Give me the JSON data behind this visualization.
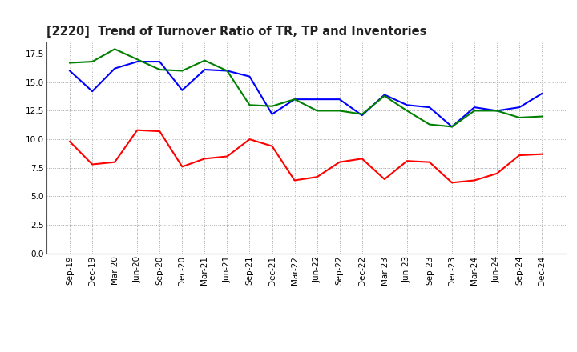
{
  "title": "[2220]  Trend of Turnover Ratio of TR, TP and Inventories",
  "x_labels": [
    "Sep-19",
    "Dec-19",
    "Mar-20",
    "Jun-20",
    "Sep-20",
    "Dec-20",
    "Mar-21",
    "Jun-21",
    "Sep-21",
    "Dec-21",
    "Mar-22",
    "Jun-22",
    "Sep-22",
    "Dec-22",
    "Mar-23",
    "Jun-23",
    "Sep-23",
    "Dec-23",
    "Mar-24",
    "Jun-24",
    "Sep-24",
    "Dec-24"
  ],
  "trade_receivables": [
    9.8,
    7.8,
    8.0,
    10.8,
    10.7,
    7.6,
    8.3,
    8.5,
    10.0,
    9.4,
    6.4,
    6.7,
    8.0,
    8.3,
    6.5,
    8.1,
    8.0,
    6.2,
    6.4,
    7.0,
    8.6,
    8.7
  ],
  "trade_payables": [
    16.0,
    14.2,
    16.2,
    16.8,
    16.8,
    14.3,
    16.1,
    16.0,
    15.5,
    12.2,
    13.5,
    13.5,
    13.5,
    12.1,
    13.9,
    13.0,
    12.8,
    11.1,
    12.8,
    12.5,
    12.8,
    14.0
  ],
  "inventories": [
    16.7,
    16.8,
    17.9,
    17.0,
    16.1,
    16.0,
    16.9,
    16.0,
    13.0,
    12.9,
    13.5,
    12.5,
    12.5,
    12.2,
    13.8,
    12.5,
    11.3,
    11.1,
    12.5,
    12.5,
    11.9,
    12.0
  ],
  "color_tr": "#FF0000",
  "color_tp": "#0000FF",
  "color_inv": "#008000",
  "ylim": [
    0,
    18.5
  ],
  "yticks": [
    0.0,
    2.5,
    5.0,
    7.5,
    10.0,
    12.5,
    15.0,
    17.5
  ],
  "background_color": "#FFFFFF",
  "plot_bg_color": "#FFFFFF",
  "title_fontsize": 10.5,
  "tick_fontsize": 7.5,
  "legend_fontsize": 8.5
}
